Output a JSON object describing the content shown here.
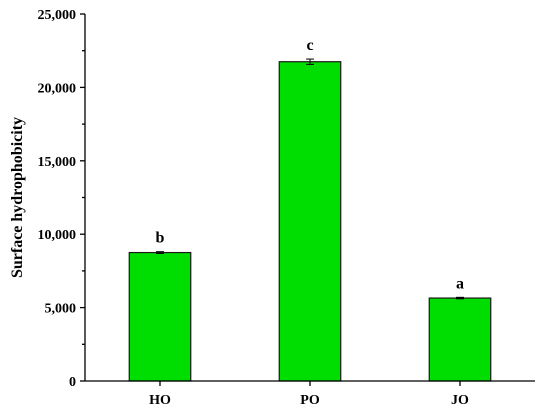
{
  "chart_data": {
    "type": "bar",
    "ylabel": "Surface hydrophobicity",
    "xlabel": "",
    "ylim": [
      0,
      25000
    ],
    "yticks": [
      0,
      5000,
      10000,
      15000,
      20000,
      25000
    ],
    "ytick_labels": [
      "0",
      "5,000",
      "10,000",
      "15,000",
      "20,000",
      "25,000"
    ],
    "categories": [
      "HO",
      "PO",
      "JO"
    ],
    "values": [
      8750,
      21750,
      5650
    ],
    "errors": [
      60,
      180,
      50
    ],
    "annotations": [
      "b",
      "c",
      "a"
    ],
    "bar_color": "#00dd00",
    "grid": false
  }
}
